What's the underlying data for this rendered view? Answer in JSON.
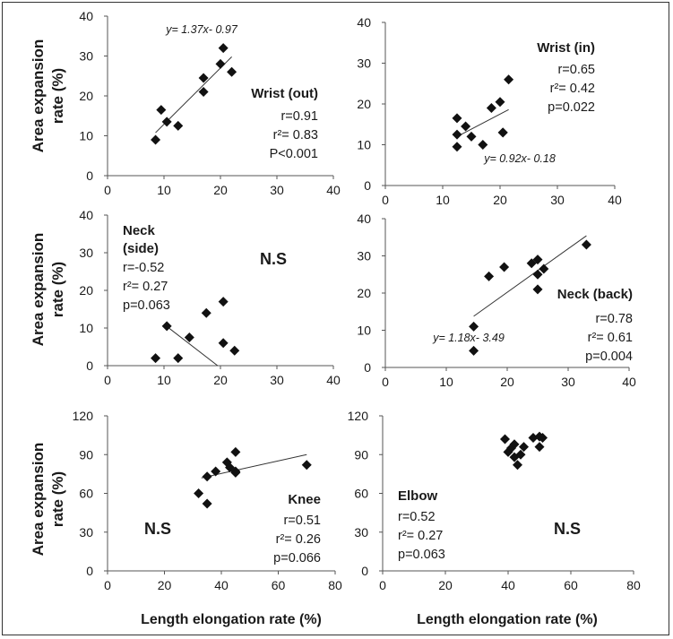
{
  "y_axis_label_lines": [
    "Area expansion",
    "rate (%)"
  ],
  "x_axis_label": "Length elongation rate (%)",
  "chart_data": [
    {
      "id": "wrist-out",
      "type": "scatter",
      "xlim": [
        0,
        40
      ],
      "ylim": [
        0,
        40
      ],
      "xticks": [
        "0",
        "10",
        "20",
        "30",
        "40"
      ],
      "yticks": [
        "0",
        "10",
        "20",
        "30",
        "40"
      ],
      "x": [
        8.5,
        9.5,
        10.5,
        12.5,
        17,
        17,
        20,
        20.5,
        22
      ],
      "y": [
        9,
        16.5,
        13.5,
        12.5,
        21,
        24.5,
        28,
        32,
        26
      ],
      "trend": {
        "x1": 8.5,
        "x2": 22
      },
      "labels": {
        "title": "Wrist (out)",
        "r": "r=0.91",
        "r2": "r²= 0.83",
        "p": "P<0.001",
        "equation": "y= 1.37x- 0.97",
        "ns": ""
      }
    },
    {
      "id": "wrist-in",
      "type": "scatter",
      "xlim": [
        0,
        40
      ],
      "ylim": [
        0,
        40
      ],
      "xticks": [
        "0",
        "10",
        "20",
        "30",
        "40"
      ],
      "yticks": [
        "0",
        "10",
        "20",
        "30",
        "40"
      ],
      "x": [
        12.5,
        12.5,
        12.5,
        14,
        15,
        17,
        18.5,
        20,
        20.5,
        21.5,
        20.5
      ],
      "y": [
        16.5,
        12.5,
        9.5,
        14.5,
        12,
        10,
        19,
        20.5,
        13,
        26,
        13
      ],
      "trend": {
        "x1": 12.5,
        "x2": 21.5
      },
      "labels": {
        "title": "Wrist (in)",
        "r": "r=0.65",
        "r2": "r²= 0.42",
        "p": "p=0.022",
        "equation": "y= 0.92x- 0.18",
        "ns": ""
      }
    },
    {
      "id": "neck-side",
      "type": "scatter",
      "xlim": [
        0,
        40
      ],
      "ylim": [
        0,
        40
      ],
      "xticks": [
        "0",
        "10",
        "20",
        "30",
        "40"
      ],
      "yticks": [
        "0",
        "10",
        "20",
        "30",
        "40"
      ],
      "x": [
        8.5,
        10.5,
        12.5,
        14.5,
        17.5,
        20.5,
        20.5,
        22.5
      ],
      "y": [
        2,
        10.5,
        2,
        7.5,
        14,
        17,
        6,
        4
      ],
      "trend": {
        "x1": 10,
        "x2": 19.5,
        "y1": 11,
        "y2": 0
      },
      "labels": {
        "title": "Neck\n(side)",
        "r": "r=-0.52",
        "r2": "r²= 0.27",
        "p": "p=0.063",
        "equation": "",
        "ns": "N.S"
      }
    },
    {
      "id": "neck-back",
      "type": "scatter",
      "xlim": [
        0,
        40
      ],
      "ylim": [
        0,
        40
      ],
      "xticks": [
        "0",
        "10",
        "20",
        "30",
        "40"
      ],
      "yticks": [
        "0",
        "10",
        "20",
        "30",
        "40"
      ],
      "x": [
        14.5,
        14.5,
        17,
        19.5,
        24,
        25,
        25,
        26,
        25,
        33
      ],
      "y": [
        11,
        4.5,
        24.5,
        27,
        28,
        29,
        25,
        26.5,
        21,
        33
      ],
      "trend": {
        "x1": 14.5,
        "x2": 33
      },
      "labels": {
        "title": "Neck (back)",
        "r": "r=0.78",
        "r2": "r²= 0.61",
        "p": "p=0.004",
        "equation": "y= 1.18x- 3.49",
        "ns": ""
      }
    },
    {
      "id": "knee",
      "type": "scatter",
      "xlim": [
        0,
        80
      ],
      "ylim": [
        0,
        120
      ],
      "xticks": [
        "0",
        "20",
        "40",
        "60",
        "80"
      ],
      "yticks": [
        "0",
        "30",
        "60",
        "90",
        "120"
      ],
      "x": [
        32,
        35,
        35,
        38,
        42,
        43,
        45,
        45,
        45,
        70
      ],
      "y": [
        60,
        52,
        73,
        77,
        84,
        80,
        92,
        77,
        76,
        82
      ],
      "trend": {
        "x1": 33,
        "x2": 70,
        "y1": 72,
        "y2": 90
      },
      "labels": {
        "title": "Knee",
        "r": "r=0.51",
        "r2": "r²= 0.26",
        "p": "p=0.066",
        "equation": "",
        "ns": "N.S"
      }
    },
    {
      "id": "elbow",
      "type": "scatter",
      "xlim": [
        0,
        80
      ],
      "ylim": [
        0,
        120
      ],
      "xticks": [
        "0",
        "20",
        "40",
        "60",
        "80"
      ],
      "yticks": [
        "0",
        "30",
        "60",
        "90",
        "120"
      ],
      "x": [
        39,
        40,
        41,
        42,
        42,
        43,
        44,
        45,
        48,
        50,
        50,
        51
      ],
      "y": [
        102,
        92,
        95,
        88,
        98,
        82,
        90,
        96,
        103,
        96,
        104,
        103
      ],
      "trend": null,
      "labels": {
        "title": "Elbow",
        "r": "r=0.52",
        "r2": "r²= 0.27",
        "p": "p=0.063",
        "equation": "",
        "ns": "N.S"
      }
    }
  ]
}
